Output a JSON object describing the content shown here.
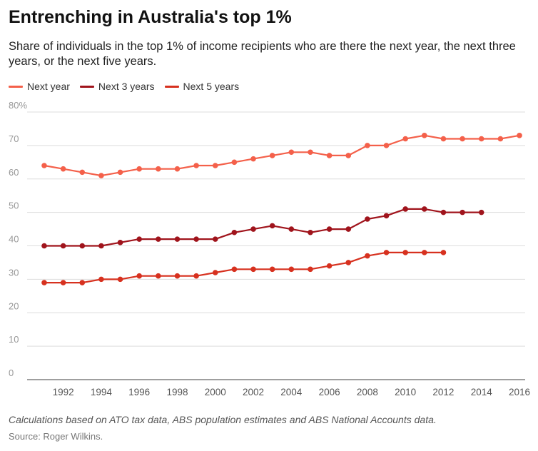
{
  "chart_data": {
    "type": "line",
    "title": "Entrenching in Australia's top 1%",
    "subtitle": "Share of individuals in the top 1% of income recipients who are there the next year, the next three years, or the next five years.",
    "ylim": [
      0,
      80
    ],
    "y_ticks": [
      "0",
      "10",
      "20",
      "30",
      "40",
      "50",
      "60",
      "70",
      "80%"
    ],
    "y_tick_values": [
      0,
      10,
      20,
      30,
      40,
      50,
      60,
      70,
      80
    ],
    "x_ticks": [
      "1992",
      "1994",
      "1996",
      "1998",
      "2000",
      "2002",
      "2004",
      "2006",
      "2008",
      "2010",
      "2012",
      "2014",
      "2016"
    ],
    "x_tick_values": [
      1992,
      1994,
      1996,
      1998,
      2000,
      2002,
      2004,
      2006,
      2008,
      2010,
      2012,
      2014,
      2016
    ],
    "xlim": [
      1990.1,
      2016.3
    ],
    "grid": true,
    "legend_position": "top-left",
    "series": [
      {
        "name": "Next year",
        "color": "#f4604a",
        "x": [
          1991,
          1992,
          1993,
          1994,
          1995,
          1996,
          1997,
          1998,
          1999,
          2000,
          2001,
          2002,
          2003,
          2004,
          2005,
          2006,
          2007,
          2008,
          2009,
          2010,
          2011,
          2012,
          2013,
          2014,
          2015,
          2016
        ],
        "values": [
          64,
          63,
          62,
          61,
          62,
          63,
          63,
          63,
          64,
          64,
          65,
          66,
          67,
          68,
          68,
          67,
          67,
          70,
          70,
          72,
          73,
          72,
          72,
          72,
          72,
          73
        ]
      },
      {
        "name": "Next 3 years",
        "color": "#a0141c",
        "x": [
          1991,
          1992,
          1993,
          1994,
          1995,
          1996,
          1997,
          1998,
          1999,
          2000,
          2001,
          2002,
          2003,
          2004,
          2005,
          2006,
          2007,
          2008,
          2009,
          2010,
          2011,
          2012,
          2013,
          2014
        ],
        "values": [
          40,
          40,
          40,
          40,
          41,
          42,
          42,
          42,
          42,
          42,
          44,
          45,
          46,
          45,
          44,
          45,
          45,
          48,
          49,
          51,
          51,
          50,
          50,
          50
        ]
      },
      {
        "name": "Next 5 years",
        "color": "#d7311f",
        "x": [
          1991,
          1992,
          1993,
          1994,
          1995,
          1996,
          1997,
          1998,
          1999,
          2000,
          2001,
          2002,
          2003,
          2004,
          2005,
          2006,
          2007,
          2008,
          2009,
          2010,
          2011,
          2012
        ],
        "values": [
          29,
          29,
          29,
          30,
          30,
          31,
          31,
          31,
          31,
          32,
          33,
          33,
          33,
          33,
          33,
          34,
          35,
          37,
          38,
          38,
          38,
          38
        ]
      }
    ]
  },
  "footnote": "Calculations based on ATO tax data, ABS population estimates and ABS National Accounts data.",
  "source": "Source: Roger Wilkins."
}
